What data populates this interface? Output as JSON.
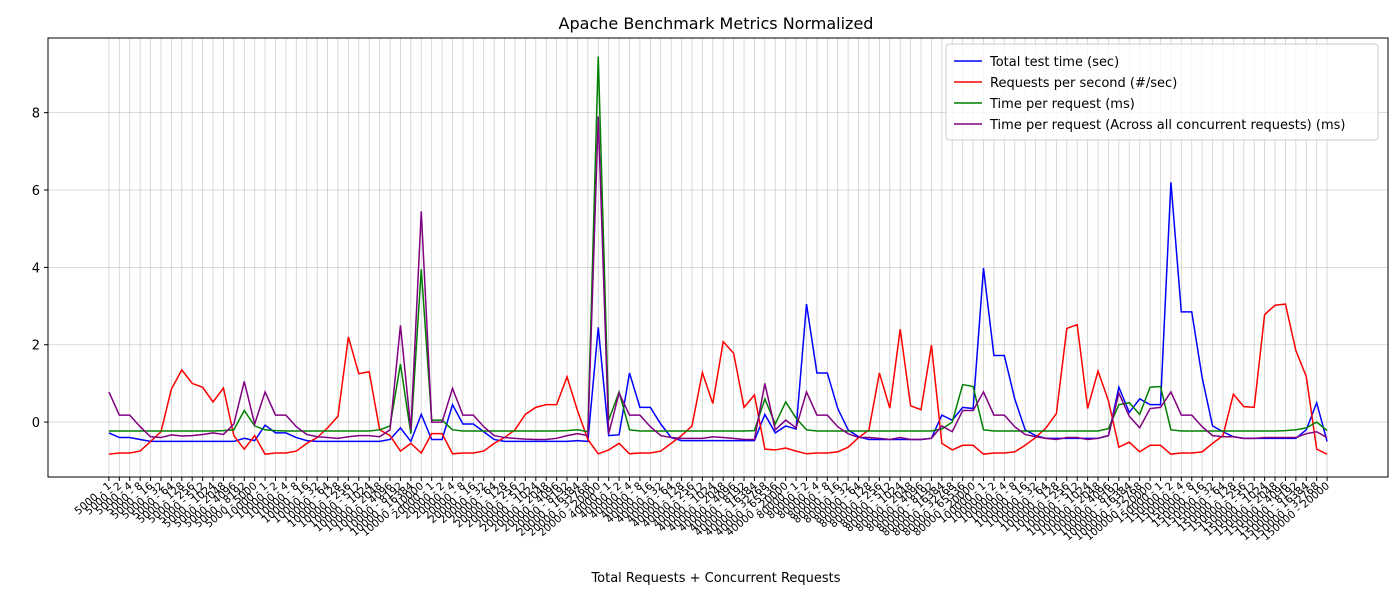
{
  "chart_data": {
    "type": "line",
    "title": "Apache Benchmark Metrics Normalized",
    "xlabel": "Total Requests + Concurrent Requests",
    "categories": [
      "5000 - 1",
      "5000 - 2",
      "5000 - 4",
      "5000 - 8",
      "5000 - 16",
      "5000 - 32",
      "5000 - 64",
      "5000 - 128",
      "5000 - 256",
      "5000 - 512",
      "5000 - 1024",
      "5000 - 2048",
      "5000 - 4096",
      "5000 - 8192",
      "5000 - 5000",
      "10000 - 1",
      "10000 - 2",
      "10000 - 4",
      "10000 - 8",
      "10000 - 16",
      "10000 - 32",
      "10000 - 64",
      "10000 - 128",
      "10000 - 256",
      "10000 - 512",
      "10000 - 1024",
      "10000 - 2048",
      "10000 - 4096",
      "10000 - 8192",
      "10000 - 16384",
      "10000 - 10000",
      "20000 - 1",
      "20000 - 2",
      "20000 - 4",
      "20000 - 8",
      "20000 - 16",
      "20000 - 32",
      "20000 - 64",
      "20000 - 128",
      "20000 - 256",
      "20000 - 512",
      "20000 - 1024",
      "20000 - 2048",
      "20000 - 4096",
      "20000 - 8192",
      "20000 - 16384",
      "20000 - 32768",
      "20000 - 20000",
      "40000 - 1",
      "40000 - 2",
      "40000 - 4",
      "40000 - 8",
      "40000 - 16",
      "40000 - 32",
      "40000 - 64",
      "40000 - 128",
      "40000 - 256",
      "40000 - 512",
      "40000 - 1024",
      "40000 - 2048",
      "40000 - 4096",
      "40000 - 8192",
      "40000 - 16384",
      "40000 - 32768",
      "40000 - 65536",
      "40000 - 20000",
      "80000 - 1",
      "80000 - 2",
      "80000 - 4",
      "80000 - 8",
      "80000 - 16",
      "80000 - 32",
      "80000 - 64",
      "80000 - 128",
      "80000 - 256",
      "80000 - 512",
      "80000 - 1024",
      "80000 - 2048",
      "80000 - 4096",
      "80000 - 8192",
      "80000 - 16384",
      "80000 - 32768",
      "80000 - 65536",
      "80000 - 20000",
      "100000 - 1",
      "100000 - 2",
      "100000 - 4",
      "100000 - 8",
      "100000 - 16",
      "100000 - 32",
      "100000 - 64",
      "100000 - 128",
      "100000 - 256",
      "100000 - 512",
      "100000 - 1024",
      "100000 - 2048",
      "100000 - 4096",
      "100000 - 8192",
      "100000 - 16384",
      "100000 - 32768",
      "100000 - 20000",
      "150000 - 1",
      "150000 - 2",
      "150000 - 4",
      "150000 - 8",
      "150000 - 16",
      "150000 - 32",
      "150000 - 64",
      "150000 - 128",
      "150000 - 256",
      "150000 - 512",
      "150000 - 1024",
      "150000 - 2048",
      "150000 - 4096",
      "150000 - 8192",
      "150000 - 16384",
      "150000 - 32768",
      "150000 - 20000"
    ],
    "series": [
      {
        "name": "Total test time (sec)",
        "color": "#0000ff",
        "values": [
          -0.28,
          -0.4,
          -0.4,
          -0.45,
          -0.5,
          -0.5,
          -0.5,
          -0.5,
          -0.5,
          -0.5,
          -0.5,
          -0.5,
          -0.5,
          -0.42,
          -0.48,
          -0.08,
          -0.28,
          -0.28,
          -0.4,
          -0.48,
          -0.5,
          -0.5,
          -0.5,
          -0.5,
          -0.5,
          -0.5,
          -0.5,
          -0.45,
          -0.15,
          -0.5,
          0.2,
          -0.45,
          -0.45,
          0.45,
          -0.05,
          -0.05,
          -0.25,
          -0.45,
          -0.5,
          -0.5,
          -0.5,
          -0.5,
          -0.5,
          -0.5,
          -0.5,
          -0.48,
          -0.5,
          2.45,
          -0.35,
          -0.33,
          1.27,
          0.38,
          0.38,
          -0.05,
          -0.4,
          -0.48,
          -0.48,
          -0.48,
          -0.48,
          -0.48,
          -0.48,
          -0.48,
          -0.48,
          0.2,
          -0.28,
          -0.1,
          -0.18,
          3.05,
          1.27,
          1.27,
          0.35,
          -0.2,
          -0.38,
          -0.45,
          -0.45,
          -0.45,
          -0.45,
          -0.45,
          -0.45,
          -0.42,
          0.18,
          0.05,
          0.38,
          0.35,
          3.98,
          1.72,
          1.72,
          0.6,
          -0.2,
          -0.35,
          -0.42,
          -0.42,
          -0.42,
          -0.42,
          -0.42,
          -0.42,
          -0.35,
          0.9,
          0.25,
          0.6,
          0.45,
          0.45,
          6.2,
          2.85,
          2.85,
          1.15,
          -0.1,
          -0.25,
          -0.38,
          -0.42,
          -0.42,
          -0.42,
          -0.42,
          -0.42,
          -0.42,
          -0.2,
          0.5,
          -0.5
        ]
      },
      {
        "name": "Requests per second (#/sec)",
        "color": "#ff0000",
        "values": [
          -0.83,
          -0.8,
          -0.8,
          -0.75,
          -0.5,
          -0.25,
          0.85,
          1.35,
          1.0,
          0.9,
          0.52,
          0.88,
          -0.35,
          -0.7,
          -0.35,
          -0.83,
          -0.8,
          -0.8,
          -0.75,
          -0.55,
          -0.4,
          -0.15,
          0.15,
          2.2,
          1.25,
          1.3,
          -0.2,
          -0.35,
          -0.75,
          -0.55,
          -0.8,
          -0.3,
          -0.3,
          -0.82,
          -0.8,
          -0.8,
          -0.75,
          -0.55,
          -0.4,
          -0.2,
          0.2,
          0.38,
          0.45,
          0.45,
          1.17,
          0.3,
          -0.45,
          -0.82,
          -0.72,
          -0.55,
          -0.82,
          -0.8,
          -0.8,
          -0.75,
          -0.55,
          -0.35,
          -0.1,
          1.28,
          0.48,
          2.08,
          1.78,
          0.38,
          0.7,
          -0.7,
          -0.72,
          -0.67,
          -0.75,
          -0.82,
          -0.8,
          -0.8,
          -0.77,
          -0.65,
          -0.4,
          -0.2,
          1.27,
          0.36,
          2.4,
          0.42,
          0.32,
          1.99,
          -0.55,
          -0.72,
          -0.6,
          -0.6,
          -0.83,
          -0.8,
          -0.8,
          -0.77,
          -0.6,
          -0.4,
          -0.15,
          0.22,
          2.42,
          2.52,
          0.35,
          1.32,
          0.55,
          -0.65,
          -0.52,
          -0.77,
          -0.6,
          -0.6,
          -0.83,
          -0.8,
          -0.8,
          -0.77,
          -0.55,
          -0.35,
          0.72,
          0.4,
          0.38,
          2.78,
          3.02,
          3.05,
          1.85,
          1.18,
          -0.7,
          -0.83
        ]
      },
      {
        "name": "Time per request (ms)",
        "color": "#008000",
        "values": [
          -0.23,
          -0.23,
          -0.23,
          -0.23,
          -0.23,
          -0.23,
          -0.23,
          -0.23,
          -0.23,
          -0.23,
          -0.23,
          -0.22,
          -0.2,
          0.3,
          -0.1,
          -0.2,
          -0.22,
          -0.23,
          -0.23,
          -0.23,
          -0.23,
          -0.23,
          -0.23,
          -0.23,
          -0.23,
          -0.23,
          -0.2,
          -0.1,
          1.5,
          -0.3,
          3.95,
          0.05,
          0.05,
          -0.2,
          -0.23,
          -0.23,
          -0.23,
          -0.23,
          -0.23,
          -0.23,
          -0.23,
          -0.23,
          -0.23,
          -0.23,
          -0.22,
          -0.2,
          -0.25,
          9.45,
          0.05,
          0.78,
          -0.2,
          -0.23,
          -0.23,
          -0.23,
          -0.23,
          -0.23,
          -0.23,
          -0.23,
          -0.23,
          -0.23,
          -0.23,
          -0.23,
          -0.22,
          0.6,
          -0.05,
          0.52,
          0.1,
          -0.2,
          -0.23,
          -0.23,
          -0.23,
          -0.23,
          -0.23,
          -0.23,
          -0.23,
          -0.23,
          -0.23,
          -0.23,
          -0.23,
          -0.23,
          -0.18,
          0.0,
          0.97,
          0.92,
          -0.2,
          -0.23,
          -0.23,
          -0.23,
          -0.23,
          -0.23,
          -0.23,
          -0.23,
          -0.23,
          -0.23,
          -0.23,
          -0.23,
          -0.17,
          0.45,
          0.5,
          0.2,
          0.9,
          0.92,
          -0.2,
          -0.23,
          -0.23,
          -0.23,
          -0.23,
          -0.23,
          -0.23,
          -0.23,
          -0.23,
          -0.23,
          -0.23,
          -0.22,
          -0.2,
          -0.15,
          0.0,
          -0.22
        ]
      },
      {
        "name": "Time per request (Across all concurrent requests) (ms)",
        "color": "#800080",
        "values": [
          0.78,
          0.18,
          0.18,
          -0.12,
          -0.38,
          -0.4,
          -0.33,
          -0.36,
          -0.35,
          -0.32,
          -0.28,
          -0.32,
          -0.05,
          1.05,
          -0.05,
          0.78,
          0.18,
          0.18,
          -0.12,
          -0.32,
          -0.38,
          -0.4,
          -0.42,
          -0.38,
          -0.35,
          -0.35,
          -0.38,
          -0.2,
          2.5,
          -0.2,
          5.45,
          0.0,
          0.0,
          0.87,
          0.18,
          0.18,
          -0.12,
          -0.35,
          -0.4,
          -0.42,
          -0.44,
          -0.45,
          -0.45,
          -0.42,
          -0.35,
          -0.3,
          -0.35,
          7.9,
          -0.3,
          0.75,
          0.18,
          0.18,
          -0.12,
          -0.35,
          -0.4,
          -0.42,
          -0.42,
          -0.42,
          -0.38,
          -0.4,
          -0.42,
          -0.45,
          -0.45,
          1.0,
          -0.2,
          0.05,
          -0.15,
          0.78,
          0.18,
          0.18,
          -0.12,
          -0.3,
          -0.4,
          -0.4,
          -0.42,
          -0.45,
          -0.4,
          -0.45,
          -0.45,
          -0.42,
          -0.1,
          -0.25,
          0.3,
          0.3,
          0.78,
          0.18,
          0.18,
          -0.12,
          -0.32,
          -0.38,
          -0.42,
          -0.45,
          -0.4,
          -0.4,
          -0.45,
          -0.42,
          -0.35,
          0.75,
          0.15,
          -0.15,
          0.35,
          0.38,
          0.78,
          0.18,
          0.18,
          -0.12,
          -0.35,
          -0.38,
          -0.38,
          -0.42,
          -0.42,
          -0.4,
          -0.4,
          -0.4,
          -0.4,
          -0.3,
          -0.25,
          -0.4
        ]
      }
    ],
    "ylim": [
      -1.42,
      9.93
    ],
    "yticks": [
      0,
      2,
      4,
      6,
      8
    ],
    "grid": true,
    "legend": "upper right"
  }
}
